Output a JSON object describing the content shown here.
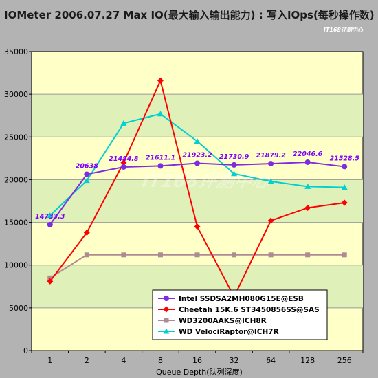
{
  "chart_data": {
    "type": "line",
    "title": "IOMeter 2006.07.27 Max IO(最大输入输出能力) : 写入IOps(每秒操作数)",
    "brand": "IT168评测中心",
    "watermark": "IT168评测中心",
    "xlabel": "Queue Depth(队列深度)",
    "ylabel": "",
    "categories": [
      "1",
      "2",
      "4",
      "8",
      "16",
      "32",
      "64",
      "128",
      "256"
    ],
    "ylim": [
      0,
      35000
    ],
    "yticks": [
      "0",
      "5000",
      "10000",
      "15000",
      "20000",
      "25000",
      "30000",
      "35000"
    ],
    "grid": true,
    "legend_position": "bottom-right",
    "series": [
      {
        "name": "Intel SSDSA2MH080G15E@ESB",
        "color": "#7f2be0",
        "marker": "circle",
        "values": [
          14733.3,
          20638,
          21484.8,
          21611.1,
          21923.2,
          21730.9,
          21879.2,
          22046.6,
          21528.5
        ],
        "labels": [
          "14733.3",
          "20638",
          "21484.8",
          "21611.1",
          "21923.2",
          "21730.9",
          "21879.2",
          "22046.6",
          "21528.5"
        ]
      },
      {
        "name": "Cheetah 15K.6 ST3450856SS@SAS",
        "color": "#ff0000",
        "marker": "diamond",
        "values": [
          8100,
          13800,
          22000,
          31600,
          14500,
          6300,
          15200,
          16700,
          17300
        ]
      },
      {
        "name": "WD3200AAKS@ICH8R",
        "color": "#b08a92",
        "marker": "square",
        "values": [
          8500,
          11200,
          11200,
          11200,
          11200,
          11200,
          11200,
          11200,
          11200
        ]
      },
      {
        "name": "WD VelociRaptor@ICH7R",
        "color": "#00d0d0",
        "marker": "triangle",
        "values": [
          15800,
          19900,
          26600,
          27700,
          24500,
          20700,
          19800,
          19200,
          19100
        ]
      }
    ]
  },
  "colors": {
    "background": "#b3b3b3",
    "plot_area": "#ffffc8",
    "plot_band": "#dff0b8",
    "grid": "#9a9a9a"
  }
}
